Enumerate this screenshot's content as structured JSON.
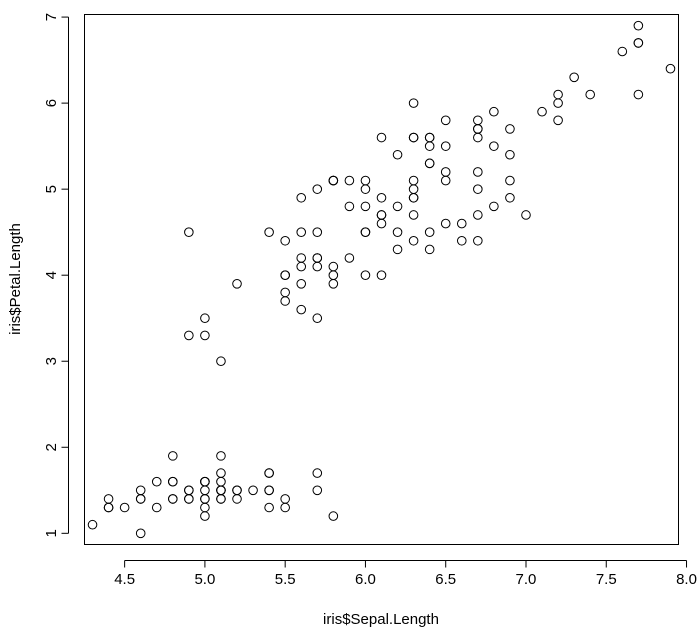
{
  "chart_data": {
    "type": "scatter",
    "title": "",
    "xlabel": "iris$Sepal.Length",
    "ylabel": "iris$Petal.Length",
    "xlim": [
      4.25,
      7.95
    ],
    "ylim": [
      0.87,
      7.03
    ],
    "xticks": [
      "4.5",
      "5.0",
      "5.5",
      "6.0",
      "6.5",
      "7.0",
      "7.5",
      "8.0"
    ],
    "yticks": [
      "1",
      "2",
      "3",
      "4",
      "5",
      "6",
      "7"
    ],
    "grid": false,
    "legend": "none",
    "marker": "open-circle",
    "color": "#000000",
    "points": [
      [
        5.1,
        1.4
      ],
      [
        4.9,
        1.4
      ],
      [
        4.7,
        1.3
      ],
      [
        4.6,
        1.5
      ],
      [
        5.0,
        1.4
      ],
      [
        5.4,
        1.7
      ],
      [
        4.6,
        1.4
      ],
      [
        5.0,
        1.5
      ],
      [
        4.4,
        1.4
      ],
      [
        4.9,
        1.5
      ],
      [
        5.4,
        1.5
      ],
      [
        4.8,
        1.6
      ],
      [
        4.8,
        1.4
      ],
      [
        4.3,
        1.1
      ],
      [
        5.8,
        1.2
      ],
      [
        5.7,
        1.5
      ],
      [
        5.4,
        1.3
      ],
      [
        5.1,
        1.4
      ],
      [
        5.7,
        1.7
      ],
      [
        5.1,
        1.5
      ],
      [
        5.4,
        1.7
      ],
      [
        5.1,
        1.5
      ],
      [
        4.6,
        1.0
      ],
      [
        5.1,
        1.7
      ],
      [
        4.8,
        1.9
      ],
      [
        5.0,
        1.6
      ],
      [
        5.0,
        1.6
      ],
      [
        5.2,
        1.5
      ],
      [
        5.2,
        1.4
      ],
      [
        4.7,
        1.6
      ],
      [
        4.8,
        1.6
      ],
      [
        5.4,
        1.5
      ],
      [
        5.2,
        1.5
      ],
      [
        5.5,
        1.4
      ],
      [
        4.9,
        1.5
      ],
      [
        5.0,
        1.2
      ],
      [
        5.5,
        1.3
      ],
      [
        4.9,
        1.4
      ],
      [
        4.4,
        1.3
      ],
      [
        5.1,
        1.5
      ],
      [
        5.0,
        1.3
      ],
      [
        4.5,
        1.3
      ],
      [
        4.4,
        1.3
      ],
      [
        5.0,
        1.6
      ],
      [
        5.1,
        1.9
      ],
      [
        4.8,
        1.4
      ],
      [
        5.1,
        1.6
      ],
      [
        4.6,
        1.4
      ],
      [
        5.3,
        1.5
      ],
      [
        5.0,
        1.4
      ],
      [
        7.0,
        4.7
      ],
      [
        6.4,
        4.5
      ],
      [
        6.9,
        4.9
      ],
      [
        5.5,
        4.0
      ],
      [
        6.5,
        4.6
      ],
      [
        5.7,
        4.5
      ],
      [
        6.3,
        4.7
      ],
      [
        4.9,
        3.3
      ],
      [
        6.6,
        4.6
      ],
      [
        5.2,
        3.9
      ],
      [
        5.0,
        3.5
      ],
      [
        5.9,
        4.2
      ],
      [
        6.0,
        4.0
      ],
      [
        6.1,
        4.7
      ],
      [
        5.6,
        3.6
      ],
      [
        6.7,
        4.4
      ],
      [
        5.6,
        4.5
      ],
      [
        5.8,
        4.1
      ],
      [
        6.2,
        4.5
      ],
      [
        5.6,
        3.9
      ],
      [
        5.9,
        4.8
      ],
      [
        6.1,
        4.0
      ],
      [
        6.3,
        4.9
      ],
      [
        6.1,
        4.7
      ],
      [
        6.4,
        4.3
      ],
      [
        6.6,
        4.4
      ],
      [
        6.8,
        4.8
      ],
      [
        6.7,
        5.0
      ],
      [
        6.0,
        4.5
      ],
      [
        5.7,
        3.5
      ],
      [
        5.5,
        3.8
      ],
      [
        5.5,
        3.7
      ],
      [
        5.8,
        3.9
      ],
      [
        6.0,
        5.1
      ],
      [
        5.4,
        4.5
      ],
      [
        6.0,
        4.5
      ],
      [
        6.7,
        4.7
      ],
      [
        6.3,
        4.4
      ],
      [
        5.6,
        4.1
      ],
      [
        5.5,
        4.0
      ],
      [
        5.5,
        4.4
      ],
      [
        6.1,
        4.6
      ],
      [
        5.8,
        4.0
      ],
      [
        5.0,
        3.3
      ],
      [
        5.6,
        4.2
      ],
      [
        5.7,
        4.2
      ],
      [
        5.7,
        4.2
      ],
      [
        6.2,
        4.3
      ],
      [
        5.1,
        3.0
      ],
      [
        5.7,
        4.1
      ],
      [
        6.3,
        6.0
      ],
      [
        5.8,
        5.1
      ],
      [
        7.1,
        5.9
      ],
      [
        6.3,
        5.6
      ],
      [
        6.5,
        5.8
      ],
      [
        7.6,
        6.6
      ],
      [
        4.9,
        4.5
      ],
      [
        7.3,
        6.3
      ],
      [
        6.7,
        5.8
      ],
      [
        7.2,
        6.1
      ],
      [
        6.5,
        5.1
      ],
      [
        6.4,
        5.3
      ],
      [
        6.8,
        5.5
      ],
      [
        5.7,
        5.0
      ],
      [
        5.8,
        5.1
      ],
      [
        6.4,
        5.3
      ],
      [
        6.5,
        5.5
      ],
      [
        7.7,
        6.7
      ],
      [
        7.7,
        6.9
      ],
      [
        6.0,
        5.0
      ],
      [
        6.9,
        5.7
      ],
      [
        5.6,
        4.9
      ],
      [
        7.7,
        6.7
      ],
      [
        6.3,
        4.9
      ],
      [
        6.7,
        5.7
      ],
      [
        7.2,
        6.0
      ],
      [
        6.2,
        4.8
      ],
      [
        6.1,
        4.9
      ],
      [
        6.4,
        5.6
      ],
      [
        7.2,
        5.8
      ],
      [
        7.4,
        6.1
      ],
      [
        7.9,
        6.4
      ],
      [
        6.4,
        5.6
      ],
      [
        6.3,
        5.1
      ],
      [
        6.1,
        5.6
      ],
      [
        7.7,
        6.1
      ],
      [
        6.3,
        5.6
      ],
      [
        6.4,
        5.5
      ],
      [
        6.0,
        4.8
      ],
      [
        6.9,
        5.4
      ],
      [
        6.7,
        5.6
      ],
      [
        6.9,
        5.1
      ],
      [
        5.8,
        5.1
      ],
      [
        6.8,
        5.9
      ],
      [
        6.7,
        5.7
      ],
      [
        6.7,
        5.2
      ],
      [
        6.3,
        5.0
      ],
      [
        6.5,
        5.2
      ],
      [
        6.2,
        5.4
      ],
      [
        5.9,
        5.1
      ]
    ]
  }
}
